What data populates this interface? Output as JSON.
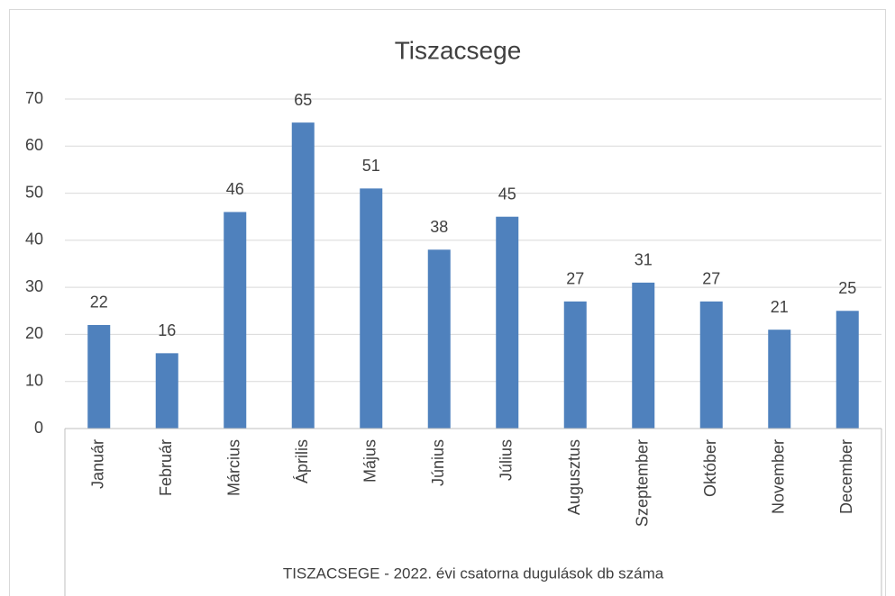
{
  "chart_data": {
    "type": "bar",
    "title": "Tiszacsege",
    "x_label": "TISZACSEGE - 2022. évi csatorna dugulások db száma",
    "categories": [
      "Január",
      "Február",
      "Március",
      "Április",
      "Május",
      "Június",
      "Július",
      "Augusztus",
      "Szeptember",
      "Október",
      "November",
      "December"
    ],
    "values": [
      22,
      16,
      46,
      65,
      51,
      38,
      45,
      27,
      31,
      27,
      21,
      25
    ],
    "color": "#4f81bd",
    "ylim": [
      0,
      70
    ],
    "yticks": [
      0,
      10,
      20,
      30,
      40,
      50,
      60,
      70
    ],
    "grid": true
  }
}
